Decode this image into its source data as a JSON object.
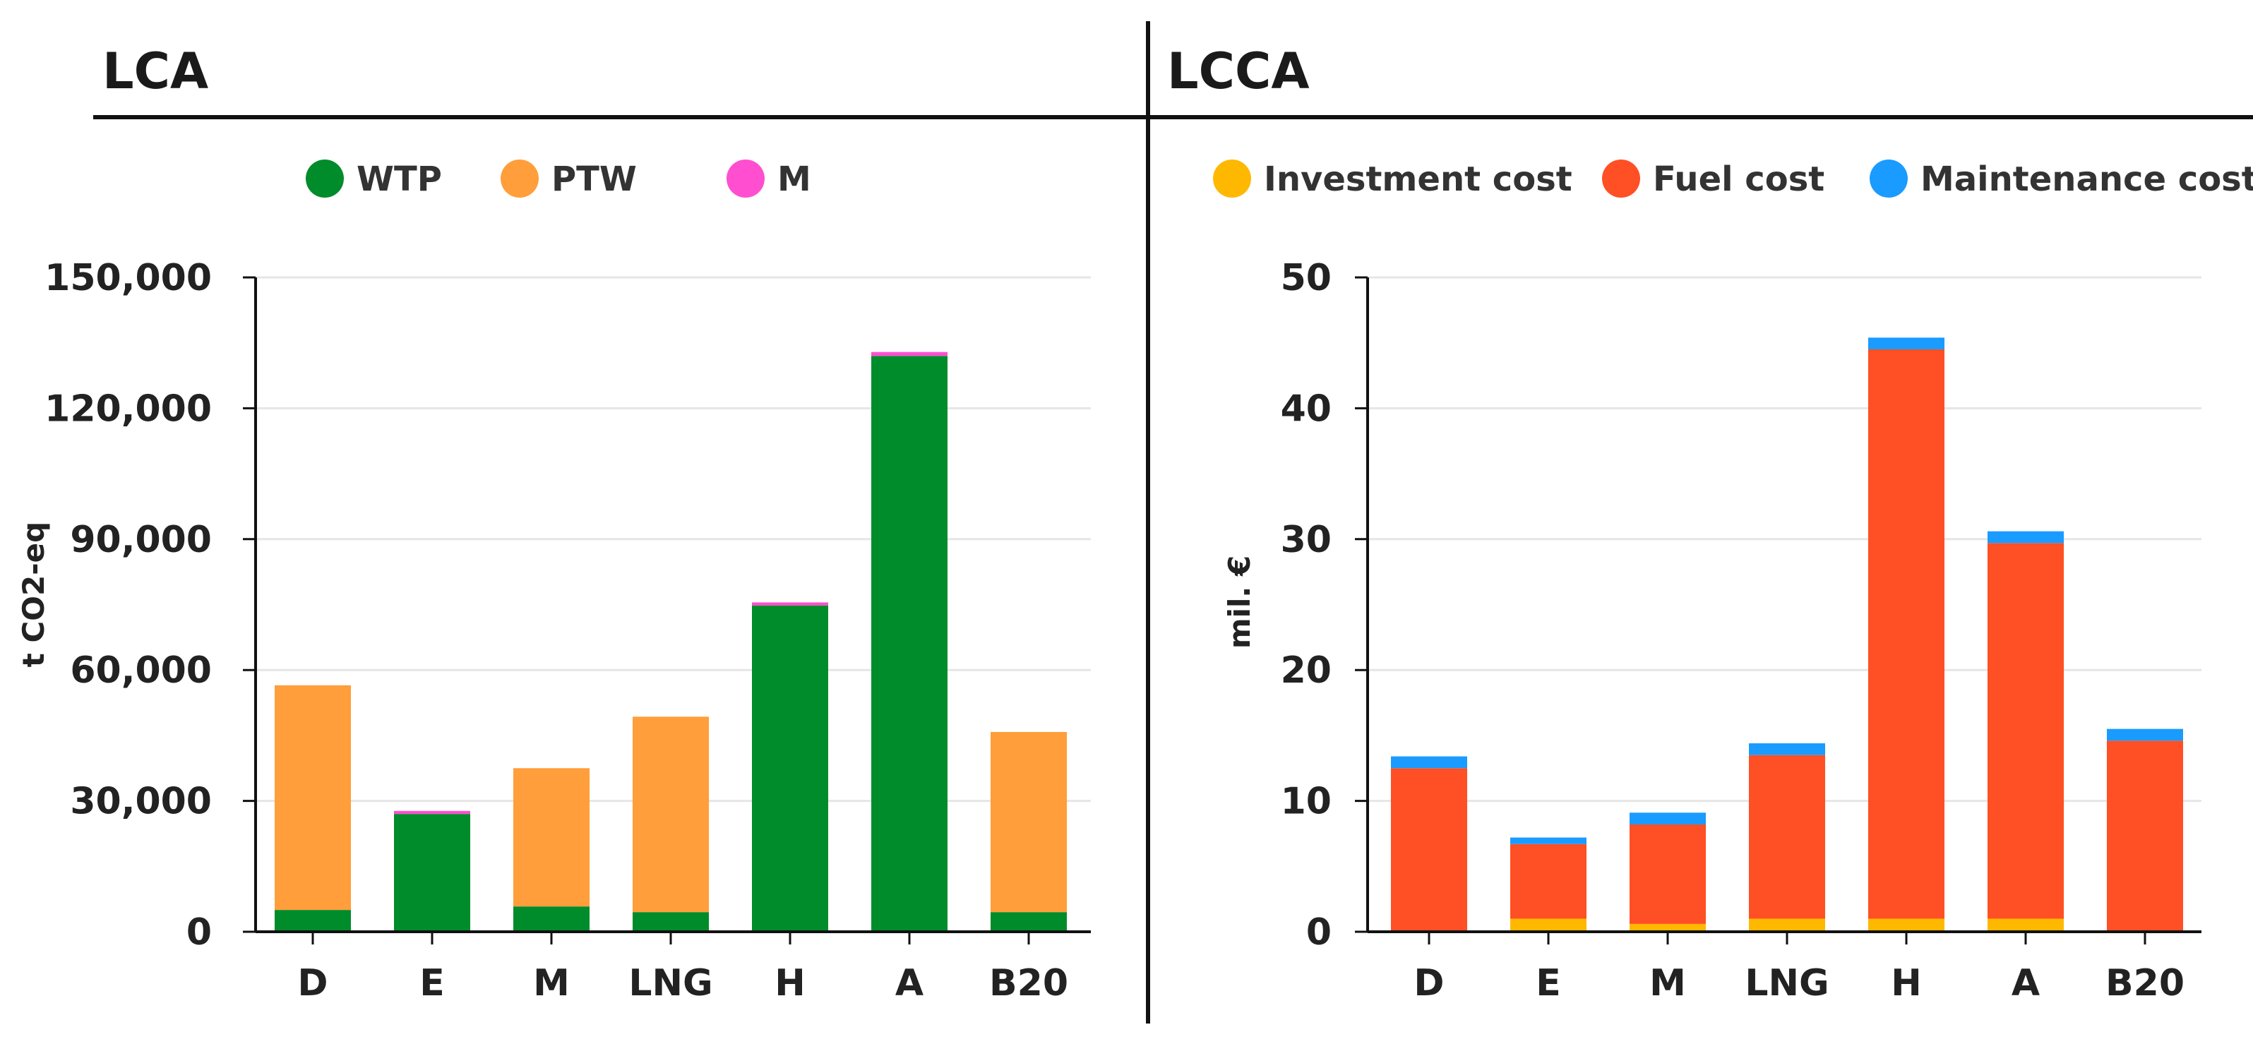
{
  "colors": {
    "wtp": "#008c2a",
    "ptw": "#ff9e3a",
    "m": "#ff4fd0",
    "investment": "#ffb800",
    "fuel": "#ff4f24",
    "maintenance": "#1a9bff",
    "grid": "#e6e6e6",
    "axis": "#111111"
  },
  "chart_data": [
    {
      "id": "lca",
      "type": "bar",
      "stacked": true,
      "title": "LCA",
      "xlabel": "",
      "ylabel": "t CO2-eq",
      "categories": [
        "D",
        "E",
        "M",
        "LNG",
        "H",
        "A",
        "B20"
      ],
      "ylim": [
        0,
        150000
      ],
      "yticks": [
        0,
        30000,
        60000,
        90000,
        120000,
        150000
      ],
      "ytick_labels": [
        "0",
        "30,000",
        "60,000",
        "90,000",
        "120,000",
        "150,000"
      ],
      "grid": true,
      "legend_position": "top-center",
      "series": [
        {
          "name": "WTP",
          "color_key": "wtp",
          "values": [
            5000,
            27000,
            5800,
            4500,
            74800,
            132000,
            4500
          ]
        },
        {
          "name": "PTW",
          "color_key": "ptw",
          "values": [
            51500,
            0,
            31700,
            44800,
            0,
            0,
            41300
          ]
        },
        {
          "name": "M",
          "color_key": "m",
          "values": [
            0,
            700,
            0,
            0,
            700,
            900,
            0
          ]
        }
      ]
    },
    {
      "id": "lcca",
      "type": "bar",
      "stacked": true,
      "title": "LCCA",
      "xlabel": "",
      "ylabel": "mil. €",
      "categories": [
        "D",
        "E",
        "M",
        "LNG",
        "H",
        "A",
        "B20"
      ],
      "ylim": [
        0,
        50
      ],
      "yticks": [
        0,
        10,
        20,
        30,
        40,
        50
      ],
      "ytick_labels": [
        "0",
        "10",
        "20",
        "30",
        "40",
        "50"
      ],
      "grid": true,
      "legend_position": "top-center",
      "series": [
        {
          "name": "Investment cost",
          "color_key": "investment",
          "values": [
            0,
            1.0,
            0.6,
            1.0,
            1.0,
            1.0,
            0
          ]
        },
        {
          "name": "Fuel cost",
          "color_key": "fuel",
          "values": [
            12.5,
            5.7,
            7.6,
            12.5,
            43.5,
            28.7,
            14.6
          ]
        },
        {
          "name": "Maintenance cost",
          "color_key": "maintenance",
          "values": [
            0.9,
            0.5,
            0.9,
            0.9,
            0.9,
            0.9,
            0.9
          ]
        }
      ]
    }
  ]
}
